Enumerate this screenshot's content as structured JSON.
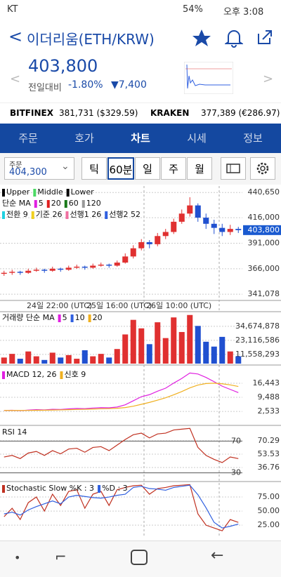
{
  "status_bar": {
    "carrier": "KT",
    "battery": "54%",
    "time": "오후 3:08"
  },
  "header": {
    "title": "이더리움(ETH/KRW)"
  },
  "price": {
    "current": "403,800",
    "change_label": "전일대비",
    "change_pct": "-1.80%",
    "change_abs": "▼7,400"
  },
  "exchanges": [
    {
      "name": "BITFINEX",
      "price": "381,731 ($329.59)"
    },
    {
      "name": "KRAKEN",
      "price": "377,389 (€286.97)"
    }
  ],
  "tabs": [
    "주문",
    "호가",
    "차트",
    "시세",
    "정보"
  ],
  "toolbar": {
    "order_label": "주문",
    "order_price": "404,300",
    "periods": [
      "틱",
      "60분",
      "일",
      "주",
      "월"
    ]
  },
  "main_chart": {
    "legend_rows": [
      [
        "Upper",
        "Middle",
        "Lower"
      ],
      [
        "단순 MA",
        "5",
        "20",
        "60",
        "120"
      ],
      [
        "전환 9",
        "기준 26",
        "선행1 26",
        "선행2 52"
      ]
    ],
    "legend_colors": [
      [
        "#000000",
        "#4cd964",
        "#000000"
      ],
      [
        null,
        "#e020e0",
        "#e02020",
        "#1a7a1a",
        "#999999"
      ],
      [
        "#20d0e0",
        "#f0d020",
        "#f070a0",
        "#3060e0"
      ]
    ],
    "ylim": [
      337000,
      447000
    ],
    "yticks": [
      {
        "value": 440650,
        "label": "440,650"
      },
      {
        "value": 416000,
        "label": "416,000"
      },
      {
        "value": 391000,
        "label": "391,000"
      },
      {
        "value": 366000,
        "label": "366,000"
      },
      {
        "value": 341078,
        "label": "341,078"
      }
    ],
    "current_price": {
      "value": 403800,
      "label": "403,800"
    },
    "up_color": "#e03030",
    "down_color": "#2050d0",
    "candles": [
      [
        361000,
        364000,
        359000,
        362000
      ],
      [
        362000,
        365000,
        360000,
        363000
      ],
      [
        363000,
        364000,
        360000,
        362000
      ],
      [
        362000,
        366000,
        361000,
        364000
      ],
      [
        364000,
        367000,
        363000,
        365000
      ],
      [
        365000,
        366000,
        362000,
        364000
      ],
      [
        364000,
        368000,
        363000,
        366000
      ],
      [
        366000,
        367000,
        363000,
        365000
      ],
      [
        365000,
        369000,
        364000,
        367000
      ],
      [
        367000,
        370000,
        366000,
        368000
      ],
      [
        368000,
        369000,
        365000,
        367000
      ],
      [
        367000,
        371000,
        366000,
        369000
      ],
      [
        369000,
        372000,
        368000,
        370000
      ],
      [
        370000,
        371000,
        367000,
        369000
      ],
      [
        369000,
        374000,
        368000,
        372000
      ],
      [
        372000,
        381000,
        371000,
        378000
      ],
      [
        378000,
        389000,
        376000,
        386000
      ],
      [
        386000,
        395000,
        384000,
        392000
      ],
      [
        392000,
        394000,
        386000,
        390000
      ],
      [
        390000,
        401000,
        388000,
        398000
      ],
      [
        398000,
        405000,
        395000,
        402000
      ],
      [
        402000,
        415000,
        400000,
        412000
      ],
      [
        412000,
        424000,
        410000,
        420000
      ],
      [
        420000,
        436000,
        417000,
        428000
      ],
      [
        428000,
        430000,
        412000,
        416000
      ],
      [
        416000,
        420000,
        405000,
        410000
      ],
      [
        410000,
        414000,
        400000,
        406000
      ],
      [
        406000,
        410000,
        398000,
        402000
      ],
      [
        402000,
        409000,
        399000,
        405000
      ],
      [
        405000,
        407000,
        401000,
        403800
      ]
    ]
  },
  "time_axis": [
    "24일 22:00 (UTC)",
    "25일 16:00 (UTC)",
    "26일 10:00 (UTC)"
  ],
  "volume": {
    "legend": [
      "거래량 단순 MA",
      "5",
      "10",
      "20"
    ],
    "legend_colors": [
      null,
      "#e020e0",
      "#3060e0",
      "#f0b020"
    ],
    "ylim": [
      4000000,
      45000000
    ],
    "yticks": [
      {
        "value": 34674878,
        "label": "34,674,878"
      },
      {
        "value": 23116586,
        "label": "23,116,586"
      },
      {
        "value": 11558293,
        "label": "11,558,293"
      }
    ],
    "values": [
      9000000,
      12000000,
      8000000,
      14000000,
      10000000,
      7000000,
      13000000,
      9000000,
      11000000,
      8000000,
      15000000,
      10000000,
      12000000,
      9000000,
      16000000,
      28000000,
      40000000,
      33000000,
      20000000,
      38000000,
      25000000,
      42000000,
      30000000,
      44000000,
      35000000,
      22000000,
      18000000,
      26000000,
      14000000,
      10000000
    ]
  },
  "macd": {
    "legend": [
      "MACD 12, 26",
      "신호 9"
    ],
    "legend_colors": [
      "#e020e0",
      "#f0b020"
    ],
    "ylim": [
      -4000,
      23700
    ],
    "yticks": [
      {
        "value": 16443,
        "label": "16,443"
      },
      {
        "value": 9488,
        "label": "9,488"
      },
      {
        "value": 2533,
        "label": "2,533"
      }
    ],
    "series": [
      {
        "name": "MACD",
        "color": "#e020e0",
        "values": [
          3000,
          3100,
          2900,
          3200,
          3400,
          3300,
          3600,
          3500,
          3800,
          4000,
          3900,
          4200,
          4400,
          4300,
          4700,
          5800,
          7800,
          9800,
          10800,
          12500,
          14000,
          16500,
          18800,
          21500,
          21000,
          19300,
          17200,
          15000,
          13400,
          11800
        ]
      },
      {
        "name": "신호",
        "color": "#f0b020",
        "values": [
          3000,
          3020,
          3000,
          3040,
          3110,
          3150,
          3240,
          3290,
          3390,
          3510,
          3590,
          3710,
          3850,
          3940,
          4090,
          4430,
          5100,
          6040,
          6990,
          8090,
          9270,
          10720,
          12340,
          14170,
          15540,
          16290,
          16470,
          16180,
          15620,
          14860
        ]
      }
    ]
  },
  "rsi": {
    "legend": [
      "RSI 14"
    ],
    "ylim": [
      20,
      88
    ],
    "levels": [
      70,
      30
    ],
    "yticks": [
      70.29,
      53.53,
      36.76
    ],
    "color": "#c03020",
    "values": [
      50,
      52,
      48,
      55,
      57,
      52,
      58,
      54,
      60,
      61,
      56,
      62,
      63,
      58,
      65,
      72,
      78,
      80,
      74,
      79,
      80,
      84,
      85,
      86,
      62,
      52,
      47,
      43,
      50,
      48
    ]
  },
  "stochastic": {
    "legend": [
      "Stochastic Slow %K : 3",
      "%D : 3"
    ],
    "legend_colors": [
      "#c03020",
      "#3060e0"
    ],
    "ylim": [
      4,
      100
    ],
    "yticks": [
      {
        "value": 75,
        "label": "75.00"
      },
      {
        "value": 50,
        "label": "50.00"
      },
      {
        "value": 25,
        "label": "25.00"
      }
    ],
    "series": [
      {
        "name": "%K",
        "color": "#c03020",
        "values": [
          40,
          55,
          35,
          65,
          75,
          50,
          80,
          60,
          85,
          88,
          55,
          80,
          85,
          60,
          88,
          92,
          95,
          96,
          80,
          90,
          92,
          95,
          96,
          97,
          45,
          25,
          20,
          15,
          35,
          30
        ]
      },
      {
        "name": "%D",
        "color": "#3060e0",
        "values": [
          45,
          48,
          43,
          52,
          58,
          63,
          68,
          63,
          75,
          78,
          76,
          74,
          73,
          75,
          78,
          80,
          92,
          94,
          90,
          89,
          87,
          92,
          94,
          96,
          79,
          56,
          30,
          20,
          23,
          27
        ]
      }
    ]
  }
}
